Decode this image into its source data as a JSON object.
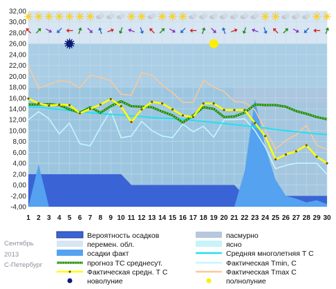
{
  "side_caption": {
    "month": "Сентябрь",
    "year": "2013",
    "city": "С-Петербург"
  },
  "colors": {
    "panel": "#9cc6e0",
    "clouds_light": "#d7e6f2",
    "precip_prob": "#3a64d6",
    "precip_fact": "#55a2f0",
    "overcast": "#b6c7de",
    "clear": "#c8f3f8",
    "mean_longterm": "#22e0ee",
    "forecast": "#1c8a14",
    "fact_mean": "#ffff00",
    "fact_min": "#c4f6ff",
    "fact_max": "#f9c89c",
    "new_moon": "#0d1a78",
    "full_moon": "#ffee00"
  },
  "chart_data": {
    "type": "line",
    "x": [
      1,
      2,
      3,
      4,
      5,
      6,
      7,
      8,
      9,
      10,
      11,
      12,
      13,
      14,
      15,
      16,
      17,
      18,
      19,
      20,
      21,
      22,
      23,
      24,
      25,
      26,
      27,
      28,
      29,
      30
    ],
    "ylim": [
      -4,
      32
    ],
    "yticks": [
      "-4,00",
      "-2,00",
      "0,00",
      "2,00",
      "4,00",
      "6,00",
      "8,00",
      "10,00",
      "12,00",
      "14,00",
      "16,00",
      "18,00",
      "20,00",
      "22,00",
      "24,00",
      "26,00",
      "28,00",
      "30,00",
      "32,00"
    ],
    "series": [
      {
        "name": "Вероятность осадков",
        "kind": "area",
        "values": [
          2,
          2,
          2,
          2,
          2,
          2,
          2,
          2,
          2,
          2,
          0,
          0,
          0,
          0,
          0,
          0,
          0,
          0,
          0,
          0,
          0,
          -2,
          -2,
          -2,
          -2,
          -2,
          -2,
          -2,
          -2,
          -2
        ]
      },
      {
        "name": "осадки факт",
        "kind": "area",
        "values": [
          -4,
          3.8,
          -4,
          -4,
          -4,
          -4,
          -4,
          -4,
          -4,
          -4,
          -4,
          -4,
          -4,
          -4,
          -4,
          -4,
          -4,
          -4,
          -4,
          -4,
          -4,
          2.5,
          15.8,
          7,
          1,
          -2,
          -2.5,
          -3.2,
          -2.8,
          -3.5
        ]
      },
      {
        "name": "Средняя многолетняя Т С",
        "values": [
          14.4,
          14.3,
          14.1,
          13.9,
          13.7,
          13.5,
          13.3,
          13.1,
          13.0,
          12.9,
          12.7,
          12.6,
          12.4,
          12.3,
          12.2,
          12.1,
          11.9,
          11.7,
          11.5,
          11.3,
          11.1,
          10.9,
          10.7,
          10.5,
          10.2,
          10.0,
          9.8,
          9.6,
          9.4,
          9.3
        ]
      },
      {
        "name": "прогноз ТС среднесут.",
        "values": [
          14.8,
          14.8,
          14.9,
          14.7,
          13.9,
          13.3,
          14.3,
          13.3,
          14.5,
          15.4,
          14.5,
          14.4,
          14.3,
          13.5,
          12.8,
          11.5,
          12.8,
          14.3,
          14.0,
          12.5,
          12.6,
          13.3,
          14.8,
          14.7,
          14.7,
          14.4,
          13.6,
          13.1,
          12.5,
          12.1
        ]
      },
      {
        "name": "Фактическая средн. Т С",
        "values": [
          15.9,
          15.0,
          14.6,
          14.8,
          14.7,
          13.2,
          14.0,
          14.8,
          15.8,
          14.5,
          11.6,
          13.9,
          15.3,
          15.0,
          13.9,
          12.8,
          12.5,
          15.0,
          15.0,
          13.8,
          13.8,
          13.8,
          11.4,
          9.0,
          4.7,
          5.6,
          6.2,
          7.3,
          5.2,
          4.0
        ]
      },
      {
        "name": "Фактическая Tmin, С",
        "values": [
          12.0,
          13.5,
          12.2,
          9.4,
          11.4,
          7.6,
          7.2,
          10.6,
          13.7,
          8.7,
          9.0,
          11.7,
          10.0,
          9.0,
          8.7,
          11.2,
          9.8,
          10.8,
          8.8,
          12.0,
          12.0,
          12.2,
          10.0,
          7.0,
          3.0,
          3.6,
          4.0,
          4.0,
          4.0,
          2.0
        ]
      },
      {
        "name": "Фактическая Tmax, С",
        "values": [
          22.0,
          17.8,
          18.5,
          19.2,
          19.0,
          17.8,
          20.2,
          19.8,
          19.2,
          16.7,
          16.5,
          20.7,
          20.2,
          18.4,
          17.0,
          15.2,
          15.2,
          19.3,
          18.0,
          17.2,
          15.4,
          15.2,
          13.8,
          10.2,
          6.6,
          8.2,
          9.2,
          11.0,
          7.3,
          6.5
        ]
      }
    ],
    "moon_phases": [
      {
        "name": "новолуние",
        "day": 5
      },
      {
        "name": "полнолуние",
        "day": 19
      }
    ],
    "legend": [
      {
        "label": "Вероятность осадков"
      },
      {
        "label": "пасмурно"
      },
      {
        "label": "перемен. обл."
      },
      {
        "label": "ясно"
      },
      {
        "label": "осадки факт"
      },
      {
        "label": "Средняя многолетняя Т С"
      },
      {
        "label": "прогноз ТС среднесут."
      },
      {
        "label": "Фактическая Tmin, С"
      },
      {
        "label": "Фактическая средн. Т С"
      },
      {
        "label": "Фактическая Tmax C"
      },
      {
        "label": "новолуние"
      },
      {
        "label": "полнолуние"
      }
    ],
    "grid": true
  }
}
